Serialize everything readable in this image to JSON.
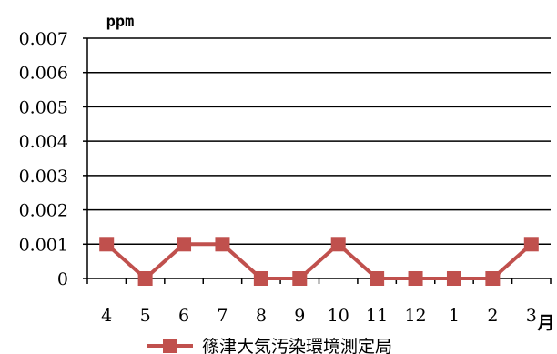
{
  "chart_data": {
    "type": "line",
    "title": "",
    "ylabel": "ppm",
    "xlabel": "月",
    "categories": [
      "4",
      "5",
      "6",
      "7",
      "8",
      "9",
      "10",
      "11",
      "12",
      "1",
      "2",
      "3"
    ],
    "series": [
      {
        "name": "篠津大気汚染環境測定局",
        "values": [
          0.001,
          0,
          0.001,
          0.001,
          0,
          0,
          0.001,
          0,
          0,
          0,
          0,
          0.001
        ],
        "color": "#c0504d"
      }
    ],
    "ylim": [
      0,
      0.007
    ],
    "yticks": [
      "0",
      "0.001",
      "0.002",
      "0.003",
      "0.004",
      "0.005",
      "0.006",
      "0.007"
    ],
    "grid": true,
    "legend": "bottom"
  }
}
